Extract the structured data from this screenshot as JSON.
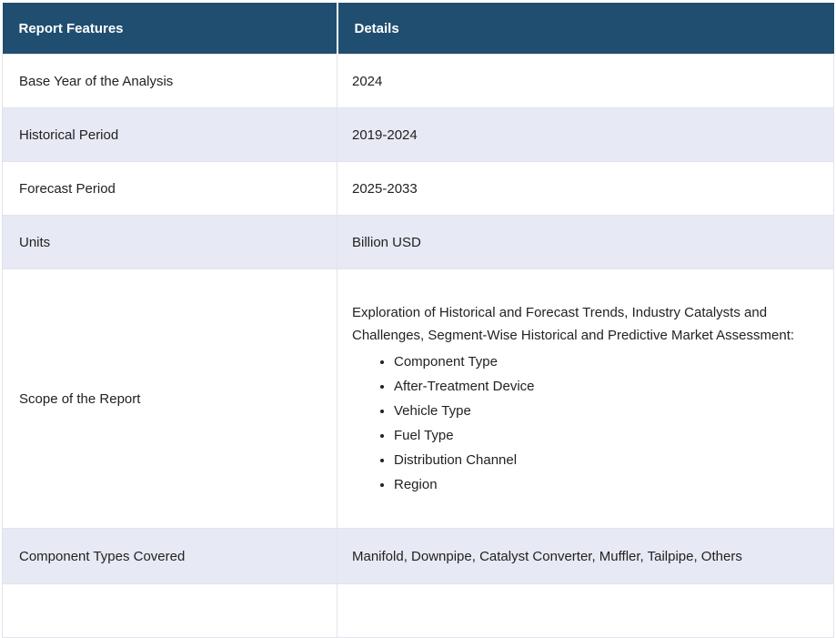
{
  "table": {
    "columns": {
      "feature": "Report Features",
      "detail": "Details"
    },
    "rows": [
      {
        "feature": "Base Year of the Analysis",
        "detail": "2024"
      },
      {
        "feature": "Historical Period",
        "detail": "2019-2024"
      },
      {
        "feature": "Forecast Period",
        "detail": "2025-2033"
      },
      {
        "feature": "Units",
        "detail": "Billion USD"
      },
      {
        "feature": "Scope of the Report",
        "detail_intro": "Exploration of Historical and Forecast Trends, Industry Catalysts and Challenges, Segment-Wise Historical and Predictive Market Assessment:",
        "detail_bullets": [
          "Component Type",
          "After-Treatment Device",
          "Vehicle Type",
          "Fuel Type",
          "Distribution Channel",
          "Region"
        ]
      },
      {
        "feature": "Component Types Covered",
        "detail": "Manifold, Downpipe, Catalyst Converter, Muffler, Tailpipe, Others"
      }
    ]
  },
  "colors": {
    "header_bg": "#204E70",
    "header_text": "#FFFFFF",
    "alt_row_bg": "#E7E9F4",
    "row_bg": "#FFFFFF",
    "border": "#E2E4EC",
    "body_text": "#222222"
  }
}
